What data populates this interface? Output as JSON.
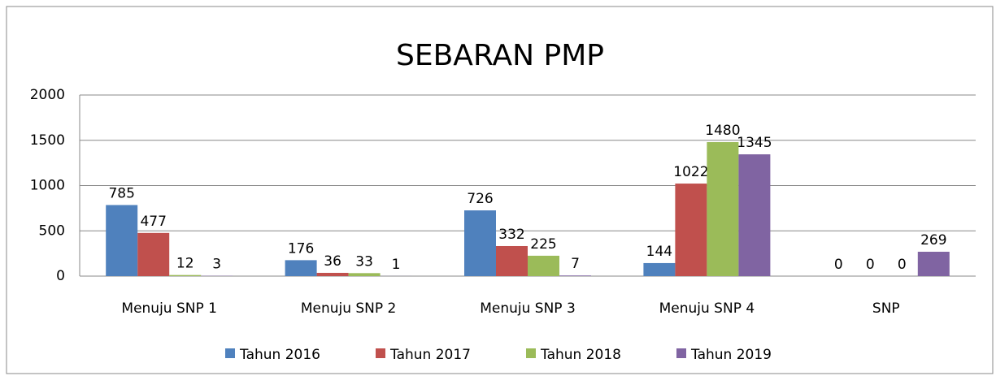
{
  "chart_data": {
    "type": "bar",
    "title": "SEBARAN PMP",
    "categories": [
      "Menuju SNP 1",
      "Menuju SNP 2",
      "Menuju SNP 3",
      "Menuju SNP 4",
      "SNP"
    ],
    "series": [
      {
        "name": "Tahun 2016",
        "color": "#4f81bd",
        "values": [
          785,
          176,
          726,
          144,
          0
        ]
      },
      {
        "name": "Tahun 2017",
        "color": "#c0504d",
        "values": [
          477,
          36,
          332,
          1022,
          0
        ]
      },
      {
        "name": "Tahun 2018",
        "color": "#9bbb59",
        "values": [
          12,
          33,
          225,
          1480,
          0
        ]
      },
      {
        "name": "Tahun 2019",
        "color": "#8064a2",
        "values": [
          3,
          1,
          7,
          1345,
          269
        ]
      }
    ],
    "ylim": [
      0,
      2000
    ],
    "yticks": [
      0,
      500,
      1000,
      1500,
      2000
    ],
    "grid": true,
    "legend": "bottom"
  }
}
